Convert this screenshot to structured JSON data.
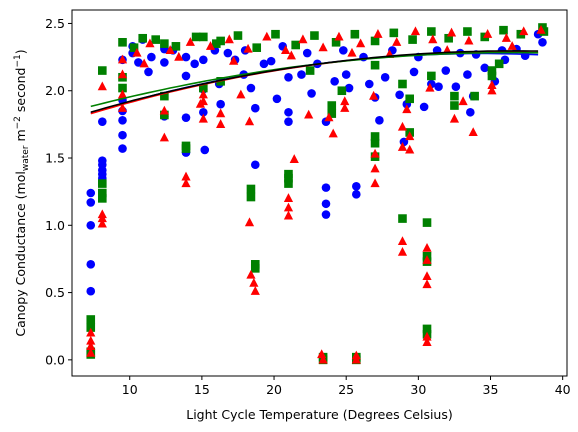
{
  "chart_data": {
    "type": "scatter",
    "title": "",
    "xlabel": "Light Cycle Temperature (Degrees Celsius)",
    "ylabel_parts": {
      "prefix": "Canopy Conductance (mol",
      "sub": "water",
      "mid": " m",
      "sup1": "−2",
      "mid2": " second",
      "sup2": "−1",
      "suffix": ")"
    },
    "xlim": [
      6,
      40.3
    ],
    "ylim": [
      -0.12,
      2.6
    ],
    "xticks": [
      10,
      15,
      20,
      25,
      30,
      35,
      40
    ],
    "yticks": [
      0.0,
      0.5,
      1.0,
      1.5,
      2.0,
      2.5
    ],
    "xtick_labels": [
      "10",
      "15",
      "20",
      "25",
      "30",
      "35",
      "40"
    ],
    "ytick_labels": [
      "0.0",
      "0.5",
      "1.0",
      "1.5",
      "2.0",
      "2.5"
    ],
    "grid": false,
    "series": [
      {
        "marker": "circle",
        "color": "#0000ff",
        "points": [
          [
            7.3,
            1.24
          ],
          [
            7.3,
            1.17
          ],
          [
            7.3,
            1.0
          ],
          [
            7.3,
            0.71
          ],
          [
            7.3,
            0.51
          ],
          [
            7.3,
            0.06
          ],
          [
            8.1,
            1.48
          ],
          [
            8.1,
            1.45
          ],
          [
            8.1,
            1.41
          ],
          [
            8.1,
            1.38
          ],
          [
            8.1,
            1.35
          ],
          [
            8.1,
            1.77
          ],
          [
            9.5,
            2.23
          ],
          [
            9.5,
            1.93
          ],
          [
            9.5,
            1.85
          ],
          [
            9.5,
            1.78
          ],
          [
            9.5,
            1.67
          ],
          [
            9.5,
            1.57
          ],
          [
            10.2,
            2.33
          ],
          [
            10.2,
            2.28
          ],
          [
            10.6,
            2.21
          ],
          [
            10.9,
            2.38
          ],
          [
            11.3,
            2.14
          ],
          [
            12.4,
            2.31
          ],
          [
            12.4,
            2.21
          ],
          [
            12.4,
            1.81
          ],
          [
            13.9,
            2.25
          ],
          [
            13.9,
            2.11
          ],
          [
            13.9,
            1.8
          ],
          [
            13.9,
            1.54
          ],
          [
            15.1,
            2.23
          ],
          [
            15.1,
            2.01
          ],
          [
            15.1,
            1.84
          ],
          [
            15.2,
            1.56
          ],
          [
            15.9,
            2.3
          ],
          [
            16.2,
            2.05
          ],
          [
            16.3,
            1.9
          ],
          [
            17.3,
            2.23
          ],
          [
            17.9,
            2.12
          ],
          [
            18.4,
            2.02
          ],
          [
            18.7,
            1.87
          ],
          [
            18.7,
            1.45
          ],
          [
            19.8,
            2.22
          ],
          [
            20.2,
            1.94
          ],
          [
            21.0,
            2.1
          ],
          [
            21.0,
            1.84
          ],
          [
            21.0,
            1.77
          ],
          [
            21.9,
            2.12
          ],
          [
            22.6,
            1.98
          ],
          [
            23.0,
            2.2
          ],
          [
            23.6,
            1.77
          ],
          [
            23.6,
            1.28
          ],
          [
            23.6,
            1.16
          ],
          [
            23.6,
            1.08
          ],
          [
            24.2,
            2.07
          ],
          [
            25.0,
            2.12
          ],
          [
            25.7,
            1.29
          ],
          [
            25.7,
            1.23
          ],
          [
            26.6,
            2.05
          ],
          [
            27.0,
            1.95
          ],
          [
            27.7,
            2.1
          ],
          [
            28.7,
            1.97
          ],
          [
            29.2,
            1.9
          ],
          [
            29.7,
            2.14
          ],
          [
            30.4,
            1.88
          ],
          [
            30.9,
            2.05
          ],
          [
            31.9,
            2.15
          ],
          [
            32.6,
            2.03
          ],
          [
            33.4,
            2.12
          ],
          [
            33.8,
            1.96
          ],
          [
            34.6,
            2.17
          ],
          [
            35.3,
            2.07
          ],
          [
            36.0,
            2.23
          ],
          [
            36.8,
            2.31
          ],
          [
            37.4,
            2.26
          ],
          [
            38.3,
            2.42
          ],
          [
            38.6,
            2.36
          ],
          [
            11.5,
            2.25
          ],
          [
            13.0,
            2.3
          ],
          [
            14.5,
            2.2
          ],
          [
            16.8,
            2.28
          ],
          [
            18.0,
            2.3
          ],
          [
            19.3,
            2.2
          ],
          [
            20.6,
            2.33
          ],
          [
            22.3,
            2.28
          ],
          [
            24.8,
            2.3
          ],
          [
            26.2,
            2.25
          ],
          [
            28.2,
            2.3
          ],
          [
            30.0,
            2.25
          ],
          [
            31.3,
            2.3
          ],
          [
            32.9,
            2.28
          ],
          [
            34.0,
            2.27
          ],
          [
            35.8,
            2.3
          ],
          [
            27.3,
            1.78
          ],
          [
            29.0,
            1.62
          ],
          [
            31.4,
            2.03
          ],
          [
            33.6,
            1.84
          ],
          [
            25.2,
            2.02
          ]
        ]
      },
      {
        "marker": "triangle",
        "color": "#ff0000",
        "points": [
          [
            7.3,
            0.2
          ],
          [
            7.3,
            0.14
          ],
          [
            7.3,
            0.1
          ],
          [
            7.3,
            0.05
          ],
          [
            8.1,
            2.03
          ],
          [
            8.1,
            1.08
          ],
          [
            8.1,
            1.05
          ],
          [
            8.1,
            1.01
          ],
          [
            9.5,
            2.23
          ],
          [
            9.5,
            2.12
          ],
          [
            9.5,
            1.97
          ],
          [
            9.5,
            1.87
          ],
          [
            12.4,
            1.65
          ],
          [
            12.4,
            1.85
          ],
          [
            13.9,
            1.36
          ],
          [
            13.9,
            1.31
          ],
          [
            15.1,
            1.97
          ],
          [
            15.1,
            1.92
          ],
          [
            15.1,
            1.79
          ],
          [
            16.3,
            1.83
          ],
          [
            16.3,
            1.75
          ],
          [
            18.4,
            0.63
          ],
          [
            18.6,
            0.57
          ],
          [
            18.7,
            0.51
          ],
          [
            18.3,
            1.02
          ],
          [
            18.3,
            1.77
          ],
          [
            21.0,
            1.2
          ],
          [
            21.0,
            1.13
          ],
          [
            21.0,
            1.07
          ],
          [
            21.4,
            1.49
          ],
          [
            23.3,
            0.04
          ],
          [
            23.4,
            0.0
          ],
          [
            23.8,
            1.8
          ],
          [
            24.1,
            1.68
          ],
          [
            24.9,
            1.92
          ],
          [
            24.9,
            1.87
          ],
          [
            25.7,
            0.03
          ],
          [
            25.7,
            0.0
          ],
          [
            27.0,
            1.53
          ],
          [
            27.0,
            1.42
          ],
          [
            27.0,
            1.31
          ],
          [
            28.9,
            0.88
          ],
          [
            28.9,
            0.8
          ],
          [
            28.9,
            1.73
          ],
          [
            28.9,
            1.58
          ],
          [
            29.4,
            1.56
          ],
          [
            29.4,
            1.66
          ],
          [
            30.6,
            0.83
          ],
          [
            30.6,
            0.74
          ],
          [
            30.6,
            0.62
          ],
          [
            30.6,
            0.56
          ],
          [
            30.6,
            0.17
          ],
          [
            30.6,
            0.13
          ],
          [
            30.8,
            2.02
          ],
          [
            32.5,
            1.79
          ],
          [
            33.8,
            1.69
          ],
          [
            35.1,
            2.0
          ],
          [
            35.1,
            2.04
          ],
          [
            14.9,
            1.9
          ],
          [
            17.7,
            1.97
          ],
          [
            22.4,
            1.82
          ],
          [
            26.9,
            1.96
          ],
          [
            29.2,
            1.86
          ],
          [
            33.1,
            1.92
          ],
          [
            10.5,
            2.28
          ],
          [
            11.4,
            2.35
          ],
          [
            12.8,
            2.3
          ],
          [
            14.2,
            2.36
          ],
          [
            15.6,
            2.33
          ],
          [
            16.9,
            2.38
          ],
          [
            18.2,
            2.31
          ],
          [
            19.5,
            2.4
          ],
          [
            20.8,
            2.3
          ],
          [
            22.0,
            2.38
          ],
          [
            23.4,
            2.32
          ],
          [
            24.5,
            2.4
          ],
          [
            26.0,
            2.35
          ],
          [
            27.2,
            2.42
          ],
          [
            28.5,
            2.36
          ],
          [
            29.8,
            2.44
          ],
          [
            31.0,
            2.38
          ],
          [
            32.3,
            2.43
          ],
          [
            33.5,
            2.37
          ],
          [
            34.8,
            2.42
          ],
          [
            36.1,
            2.39
          ],
          [
            37.3,
            2.44
          ],
          [
            38.5,
            2.45
          ],
          [
            11.0,
            2.2
          ],
          [
            13.4,
            2.25
          ],
          [
            17.2,
            2.22
          ],
          [
            21.2,
            2.26
          ],
          [
            25.4,
            2.28
          ],
          [
            28.0,
            2.27
          ],
          [
            32.0,
            2.3
          ],
          [
            36.5,
            2.33
          ]
        ]
      },
      {
        "marker": "square",
        "color": "#008000",
        "points": [
          [
            7.3,
            0.3
          ],
          [
            7.3,
            0.24
          ],
          [
            7.3,
            0.06
          ],
          [
            7.3,
            0.04
          ],
          [
            8.1,
            2.15
          ],
          [
            8.1,
            1.31
          ],
          [
            8.1,
            1.24
          ],
          [
            8.1,
            1.2
          ],
          [
            9.5,
            2.36
          ],
          [
            9.5,
            2.1
          ],
          [
            9.5,
            2.02
          ],
          [
            10.9,
            2.39
          ],
          [
            12.4,
            2.35
          ],
          [
            12.4,
            1.96
          ],
          [
            12.4,
            1.82
          ],
          [
            13.9,
            1.59
          ],
          [
            13.9,
            1.57
          ],
          [
            15.1,
            2.4
          ],
          [
            15.1,
            2.02
          ],
          [
            16.3,
            2.37
          ],
          [
            16.3,
            2.07
          ],
          [
            18.4,
            1.27
          ],
          [
            18.4,
            1.21
          ],
          [
            18.7,
            0.71
          ],
          [
            18.7,
            0.68
          ],
          [
            21.0,
            1.38
          ],
          [
            21.0,
            1.35
          ],
          [
            21.0,
            1.31
          ],
          [
            23.4,
            0.02
          ],
          [
            23.4,
            0.0
          ],
          [
            24.0,
            1.89
          ],
          [
            24.0,
            1.83
          ],
          [
            25.7,
            0.02
          ],
          [
            25.7,
            0.0
          ],
          [
            27.0,
            1.66
          ],
          [
            27.0,
            1.61
          ],
          [
            27.0,
            1.51
          ],
          [
            27.0,
            2.19
          ],
          [
            28.9,
            1.05
          ],
          [
            28.9,
            2.05
          ],
          [
            29.4,
            1.94
          ],
          [
            29.4,
            1.69
          ],
          [
            30.6,
            1.02
          ],
          [
            30.6,
            0.77
          ],
          [
            30.6,
            0.73
          ],
          [
            30.6,
            0.23
          ],
          [
            30.6,
            0.19
          ],
          [
            30.9,
            2.11
          ],
          [
            32.5,
            1.96
          ],
          [
            32.5,
            1.89
          ],
          [
            35.1,
            2.15
          ],
          [
            35.1,
            2.11
          ],
          [
            24.7,
            2.0
          ],
          [
            22.5,
            2.15
          ],
          [
            33.9,
            1.96
          ],
          [
            35.6,
            2.2
          ],
          [
            10.3,
            2.32
          ],
          [
            11.8,
            2.38
          ],
          [
            13.2,
            2.33
          ],
          [
            14.6,
            2.4
          ],
          [
            16.0,
            2.35
          ],
          [
            17.5,
            2.41
          ],
          [
            18.8,
            2.32
          ],
          [
            20.1,
            2.42
          ],
          [
            21.5,
            2.34
          ],
          [
            22.8,
            2.41
          ],
          [
            24.3,
            2.36
          ],
          [
            25.6,
            2.42
          ],
          [
            27.0,
            2.37
          ],
          [
            28.3,
            2.43
          ],
          [
            29.6,
            2.38
          ],
          [
            30.9,
            2.44
          ],
          [
            32.1,
            2.39
          ],
          [
            33.4,
            2.44
          ],
          [
            34.6,
            2.4
          ],
          [
            35.9,
            2.45
          ],
          [
            37.1,
            2.42
          ],
          [
            38.6,
            2.47
          ],
          [
            38.7,
            2.44
          ]
        ]
      }
    ],
    "fit_curves": [
      {
        "color": "#0000ff",
        "coeffs": [
          1.566,
          0.0413,
          -0.0006
        ]
      },
      {
        "color": "#ff0000",
        "coeffs": [
          1.564,
          0.0406,
          -0.00057
        ]
      },
      {
        "color": "#008000",
        "coeffs": [
          1.658,
          0.0343,
          -0.00047
        ]
      },
      {
        "color": "#000000",
        "coeffs": [
          1.586,
          0.0388,
          -0.00053
        ]
      }
    ]
  }
}
